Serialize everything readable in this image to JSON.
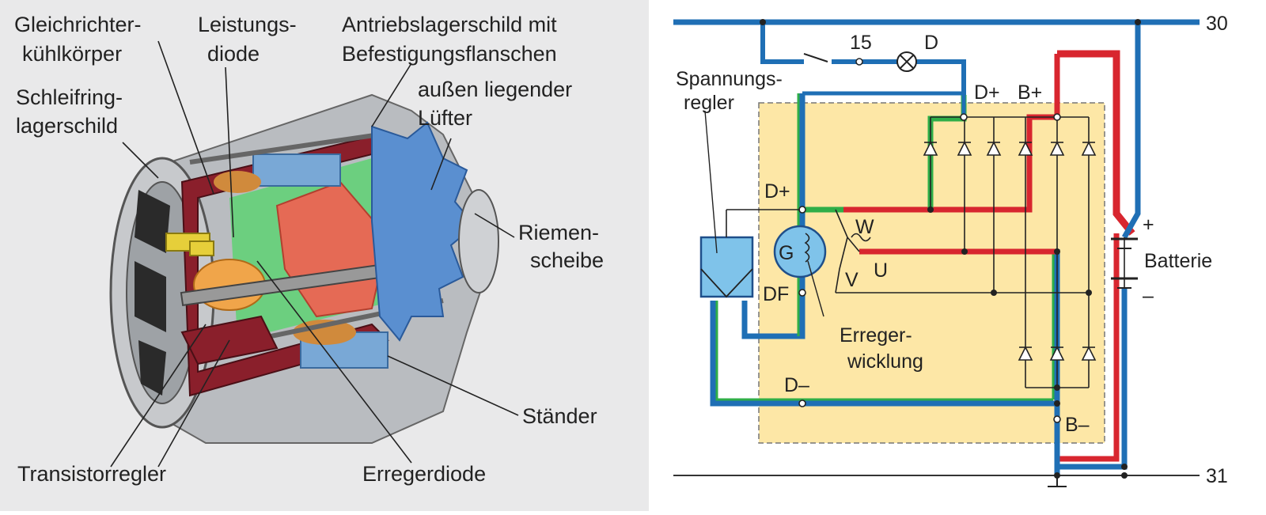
{
  "left": {
    "labels": {
      "rectifier_heatsink": [
        "Gleichrichter-",
        "kühlkörper"
      ],
      "power_diode": [
        "Leistungs-",
        "diode"
      ],
      "drive_end_shield": [
        "Antriebslagerschild mit",
        "Befestigungsflanschen"
      ],
      "slip_ring_shield": [
        "Schleifring-",
        "lagerschild"
      ],
      "external_fan": [
        "außen liegender",
        "Lüfter"
      ],
      "pulley": [
        "Riemen-",
        "scheibe"
      ],
      "stator": "Ständer",
      "transistor_regulator": "Transistorregler",
      "exciter_diode": "Erregerdiode"
    }
  },
  "right": {
    "terminal_30": "30",
    "terminal_31": "31",
    "t15": "15",
    "lamp_d": "D",
    "regulator": [
      "Spannungs-",
      "regler"
    ],
    "d_plus_top": "D+",
    "b_plus": "B+",
    "d_plus_reg": "D+",
    "df": "DF",
    "g": "G",
    "w": "W",
    "u": "U",
    "v": "V",
    "plus": "+",
    "minus": "–",
    "battery": "Batterie",
    "exciter_winding": [
      "Erreger-",
      "wicklung"
    ],
    "d_minus": "D–",
    "b_minus": "B–"
  },
  "colors": {
    "blue": "#1f6fb5",
    "green": "#2fae48",
    "red": "#d8262f",
    "panel_yellow": "#fde7a6",
    "regulator_blue": "#7fc3ea"
  }
}
